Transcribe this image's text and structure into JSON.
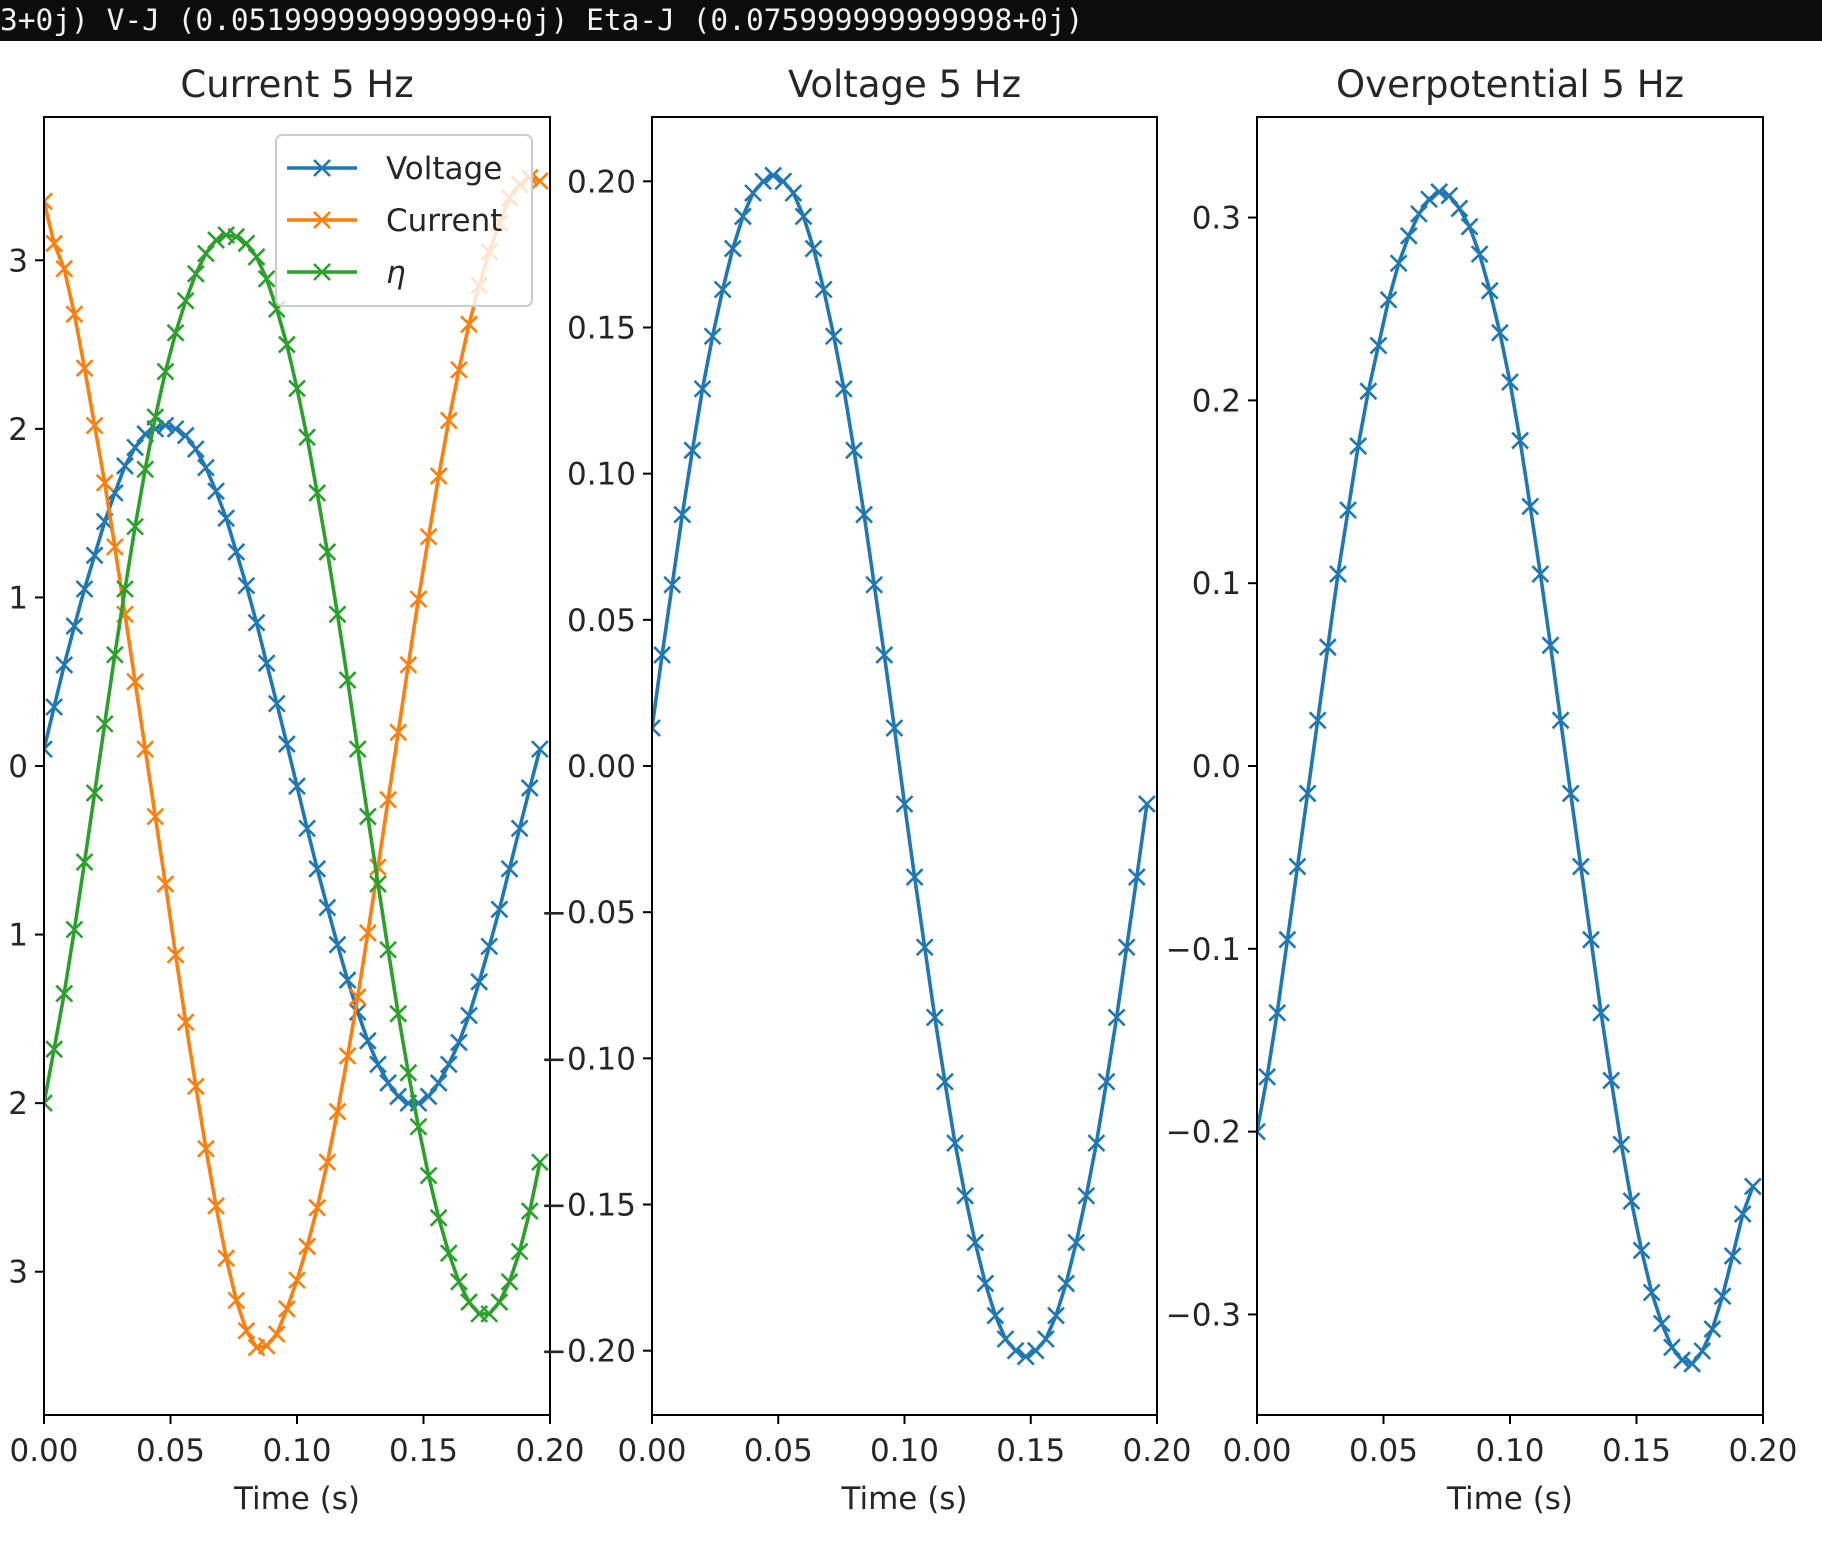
{
  "console": {
    "text": "3+0j) V-J (0.051999999999999+0j) Eta-J (0.075999999999998+0j)"
  },
  "chart_data": [
    {
      "type": "line",
      "title": "Current 5 Hz",
      "xlabel": "Time (s)",
      "ylabel": "",
      "xlim": [
        0,
        0.2
      ],
      "ylim": [
        -3.85,
        3.85
      ],
      "xticks": [
        "0.00",
        "0.05",
        "0.10",
        "0.15",
        "0.20"
      ],
      "yticks": [
        {
          "value": 3,
          "label": "3"
        },
        {
          "value": 2,
          "label": "2"
        },
        {
          "value": 1,
          "label": "1"
        },
        {
          "value": 0,
          "label": "0"
        },
        {
          "value": -1,
          "label": "1"
        },
        {
          "value": -2,
          "label": "2"
        },
        {
          "value": -3,
          "label": "3"
        }
      ],
      "legend": {
        "position": "upper right",
        "entries": [
          "Voltage",
          "Current",
          "η"
        ]
      },
      "grid": false,
      "marker": "x",
      "x": [
        0.0,
        0.004,
        0.008,
        0.012,
        0.016,
        0.02,
        0.024,
        0.028,
        0.032,
        0.036,
        0.04,
        0.044,
        0.048,
        0.052,
        0.056,
        0.06,
        0.064,
        0.068,
        0.072,
        0.076,
        0.08,
        0.084,
        0.088,
        0.092,
        0.096,
        0.1,
        0.104,
        0.108,
        0.112,
        0.116,
        0.12,
        0.124,
        0.128,
        0.132,
        0.136,
        0.14,
        0.144,
        0.148,
        0.152,
        0.156,
        0.16,
        0.164,
        0.168,
        0.172,
        0.176,
        0.18,
        0.184,
        0.188,
        0.192,
        0.196
      ],
      "series": [
        {
          "name": "Voltage",
          "color": "#1f77b4",
          "values": [
            0.1,
            0.35,
            0.6,
            0.83,
            1.05,
            1.25,
            1.45,
            1.62,
            1.78,
            1.89,
            1.97,
            2.0,
            2.02,
            2.0,
            1.96,
            1.88,
            1.77,
            1.63,
            1.47,
            1.27,
            1.07,
            0.85,
            0.61,
            0.37,
            0.13,
            -0.12,
            -0.37,
            -0.61,
            -0.84,
            -1.06,
            -1.27,
            -1.46,
            -1.63,
            -1.77,
            -1.88,
            -1.96,
            -2.0,
            -2.0,
            -1.96,
            -1.88,
            -1.77,
            -1.64,
            -1.48,
            -1.28,
            -1.07,
            -0.85,
            -0.61,
            -0.37,
            -0.13,
            0.1
          ]
        },
        {
          "name": "Current",
          "color": "#ff7f0e",
          "values": [
            3.35,
            3.1,
            2.95,
            2.68,
            2.36,
            2.02,
            1.68,
            1.3,
            0.9,
            0.5,
            0.1,
            -0.3,
            -0.7,
            -1.12,
            -1.52,
            -1.9,
            -2.27,
            -2.61,
            -2.92,
            -3.17,
            -3.35,
            -3.45,
            -3.44,
            -3.37,
            -3.22,
            -3.05,
            -2.85,
            -2.62,
            -2.35,
            -2.05,
            -1.72,
            -1.37,
            -0.99,
            -0.6,
            -0.2,
            0.2,
            0.6,
            0.99,
            1.36,
            1.72,
            2.05,
            2.35,
            2.62,
            2.85,
            3.05,
            3.22,
            3.37,
            3.45,
            3.49,
            3.47
          ]
        },
        {
          "name": "η",
          "color": "#2ca02c",
          "values": [
            -2.0,
            -1.68,
            -1.35,
            -0.97,
            -0.57,
            -0.16,
            0.25,
            0.66,
            1.05,
            1.42,
            1.76,
            2.07,
            2.34,
            2.57,
            2.76,
            2.92,
            3.04,
            3.12,
            3.15,
            3.14,
            3.1,
            3.02,
            2.89,
            2.71,
            2.5,
            2.24,
            1.95,
            1.62,
            1.27,
            0.9,
            0.51,
            0.1,
            -0.3,
            -0.7,
            -1.09,
            -1.47,
            -1.82,
            -2.14,
            -2.43,
            -2.68,
            -2.89,
            -3.06,
            -3.18,
            -3.25,
            -3.25,
            -3.18,
            -3.06,
            -2.88,
            -2.64,
            -2.35
          ]
        }
      ]
    },
    {
      "type": "line",
      "title": "Voltage 5 Hz",
      "xlabel": "Time (s)",
      "ylabel": "",
      "xlim": [
        0,
        0.2
      ],
      "ylim": [
        -0.222,
        0.222
      ],
      "xticks": [
        "0.00",
        "0.05",
        "0.10",
        "0.15",
        "0.20"
      ],
      "yticks": [
        {
          "value": 0.2,
          "label": "0.20"
        },
        {
          "value": 0.15,
          "label": "0.15"
        },
        {
          "value": 0.1,
          "label": "0.10"
        },
        {
          "value": 0.05,
          "label": "0.05"
        },
        {
          "value": 0.0,
          "label": "0.00"
        },
        {
          "value": -0.05,
          "label": "−0.05"
        },
        {
          "value": -0.1,
          "label": "−0.10"
        },
        {
          "value": -0.15,
          "label": "−0.15"
        },
        {
          "value": -0.2,
          "label": "−0.20"
        }
      ],
      "grid": false,
      "marker": "x",
      "x": [
        0.0,
        0.004,
        0.008,
        0.012,
        0.016,
        0.02,
        0.024,
        0.028,
        0.032,
        0.036,
        0.04,
        0.044,
        0.048,
        0.052,
        0.056,
        0.06,
        0.064,
        0.068,
        0.072,
        0.076,
        0.08,
        0.084,
        0.088,
        0.092,
        0.096,
        0.1,
        0.104,
        0.108,
        0.112,
        0.116,
        0.12,
        0.124,
        0.128,
        0.132,
        0.136,
        0.14,
        0.144,
        0.148,
        0.152,
        0.156,
        0.16,
        0.164,
        0.168,
        0.172,
        0.176,
        0.18,
        0.184,
        0.188,
        0.192,
        0.196
      ],
      "series": [
        {
          "color": "#1f77b4",
          "values": [
            0.013,
            0.038,
            0.062,
            0.086,
            0.108,
            0.129,
            0.147,
            0.163,
            0.177,
            0.188,
            0.196,
            0.2,
            0.202,
            0.2,
            0.196,
            0.188,
            0.177,
            0.163,
            0.147,
            0.129,
            0.108,
            0.086,
            0.062,
            0.038,
            0.013,
            -0.013,
            -0.038,
            -0.062,
            -0.086,
            -0.108,
            -0.129,
            -0.147,
            -0.163,
            -0.177,
            -0.188,
            -0.196,
            -0.2,
            -0.202,
            -0.2,
            -0.196,
            -0.188,
            -0.177,
            -0.163,
            -0.147,
            -0.129,
            -0.108,
            -0.086,
            -0.062,
            -0.038,
            -0.013
          ]
        }
      ]
    },
    {
      "type": "line",
      "title": "Overpotential 5 Hz",
      "xlabel": "Time (s)",
      "ylabel": "",
      "xlim": [
        0,
        0.2
      ],
      "ylim": [
        -0.355,
        0.355
      ],
      "xticks": [
        "0.00",
        "0.05",
        "0.10",
        "0.15",
        "0.20"
      ],
      "yticks": [
        {
          "value": 0.3,
          "label": "0.3"
        },
        {
          "value": 0.2,
          "label": "0.2"
        },
        {
          "value": 0.1,
          "label": "0.1"
        },
        {
          "value": 0.0,
          "label": "0.0"
        },
        {
          "value": -0.1,
          "label": "−0.1"
        },
        {
          "value": -0.2,
          "label": "−0.2"
        },
        {
          "value": -0.3,
          "label": "−0.3"
        }
      ],
      "grid": false,
      "marker": "x",
      "x": [
        0.0,
        0.004,
        0.008,
        0.012,
        0.016,
        0.02,
        0.024,
        0.028,
        0.032,
        0.036,
        0.04,
        0.044,
        0.048,
        0.052,
        0.056,
        0.06,
        0.064,
        0.068,
        0.072,
        0.076,
        0.08,
        0.084,
        0.088,
        0.092,
        0.096,
        0.1,
        0.104,
        0.108,
        0.112,
        0.116,
        0.12,
        0.124,
        0.128,
        0.132,
        0.136,
        0.14,
        0.144,
        0.148,
        0.152,
        0.156,
        0.16,
        0.164,
        0.168,
        0.172,
        0.176,
        0.18,
        0.184,
        0.188,
        0.192,
        0.196
      ],
      "series": [
        {
          "color": "#1f77b4",
          "values": [
            -0.2,
            -0.17,
            -0.135,
            -0.095,
            -0.055,
            -0.015,
            0.025,
            0.065,
            0.105,
            0.14,
            0.175,
            0.205,
            0.23,
            0.255,
            0.275,
            0.29,
            0.302,
            0.31,
            0.314,
            0.312,
            0.305,
            0.295,
            0.28,
            0.26,
            0.237,
            0.21,
            0.178,
            0.142,
            0.105,
            0.066,
            0.025,
            -0.015,
            -0.055,
            -0.095,
            -0.135,
            -0.172,
            -0.207,
            -0.238,
            -0.265,
            -0.288,
            -0.305,
            -0.318,
            -0.325,
            -0.327,
            -0.32,
            -0.308,
            -0.29,
            -0.268,
            -0.245,
            -0.23
          ]
        }
      ]
    }
  ]
}
